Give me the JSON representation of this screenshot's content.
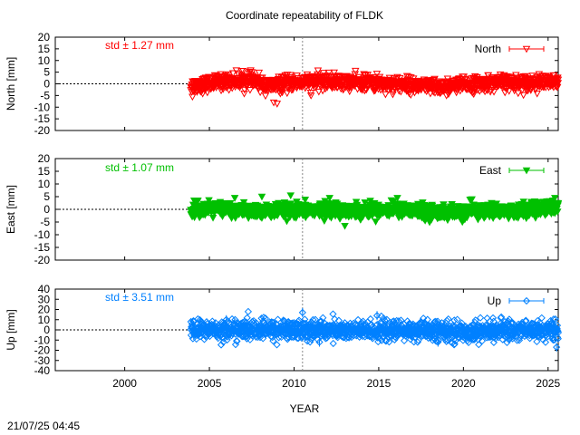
{
  "chart_data": {
    "type": "scatter",
    "title": "Coordinate repeatability of FLDK",
    "xlabel": "YEAR",
    "timestamp": "21/07/25 04:45",
    "xlim": [
      1995.9,
      2025.6
    ],
    "xticks": [
      2000,
      2005,
      2010,
      2015,
      2020,
      2025
    ],
    "reference_year": 2010.5,
    "data_start_year": 2003.9,
    "panels": [
      {
        "name": "North",
        "ylabel": "North [mm]",
        "std_label": "std ± 1.27 mm",
        "color": "#ff0000",
        "marker": "triangle-down",
        "ylim": [
          -20,
          20
        ],
        "yticks": [
          20,
          15,
          10,
          5,
          0,
          -5,
          -10,
          -15,
          -20
        ],
        "std": 1.27,
        "mean_profile": [
          [
            2003.9,
            -1.0
          ],
          [
            2006.0,
            1.0
          ],
          [
            2007.5,
            1.5
          ],
          [
            2008.5,
            -1.0
          ],
          [
            2010.0,
            0.5
          ],
          [
            2012.0,
            1.0
          ],
          [
            2014.0,
            0.5
          ],
          [
            2016.0,
            0.0
          ],
          [
            2018.5,
            -1.5
          ],
          [
            2020.0,
            -0.5
          ],
          [
            2022.0,
            0.5
          ],
          [
            2024.0,
            0.5
          ],
          [
            2025.6,
            0.5
          ]
        ],
        "outliers": [
          [
            2008.8,
            -8.0
          ],
          [
            2009.0,
            -8.5
          ],
          [
            2004.0,
            -5.5
          ],
          [
            2006.9,
            5.5
          ],
          [
            2007.4,
            5.0
          ],
          [
            2011.0,
            -5.0
          ],
          [
            2015.4,
            -4.5
          ],
          [
            2019.0,
            -5.0
          ]
        ]
      },
      {
        "name": "East",
        "ylabel": "East [mm]",
        "std_label": "std ± 1.07 mm",
        "color": "#00c000",
        "marker": "triangle-down-filled",
        "ylim": [
          -20,
          20
        ],
        "yticks": [
          20,
          15,
          10,
          5,
          0,
          -5,
          -10,
          -15,
          -20
        ],
        "std": 1.07,
        "mean_profile": [
          [
            2003.9,
            0.0
          ],
          [
            2006.0,
            0.0
          ],
          [
            2008.0,
            -1.0
          ],
          [
            2010.0,
            -0.5
          ],
          [
            2012.0,
            0.0
          ],
          [
            2014.0,
            -0.5
          ],
          [
            2016.0,
            0.0
          ],
          [
            2018.0,
            -1.0
          ],
          [
            2019.5,
            -1.5
          ],
          [
            2021.0,
            -0.5
          ],
          [
            2023.0,
            -0.5
          ],
          [
            2025.6,
            0.5
          ]
        ],
        "outliers": [
          [
            2006.5,
            4.5
          ],
          [
            2008.1,
            5.0
          ],
          [
            2009.8,
            5.5
          ],
          [
            2004.1,
            3.5
          ],
          [
            2012.1,
            4.5
          ],
          [
            2013.0,
            -6.5
          ],
          [
            2016.1,
            4.5
          ],
          [
            2020.5,
            4.0
          ],
          [
            2025.4,
            4.5
          ]
        ]
      },
      {
        "name": "Up",
        "ylabel": "Up [mm]",
        "std_label": "std ± 3.51 mm",
        "color": "#0080ff",
        "marker": "diamond",
        "ylim": [
          -40,
          40
        ],
        "yticks": [
          40,
          30,
          20,
          10,
          0,
          -10,
          -20,
          -30,
          -40
        ],
        "std": 3.51,
        "mean_profile": [
          [
            2003.9,
            0.0
          ],
          [
            2006.0,
            0.0
          ],
          [
            2008.0,
            0.0
          ],
          [
            2010.0,
            0.5
          ],
          [
            2012.0,
            0.0
          ],
          [
            2014.0,
            -1.0
          ],
          [
            2016.0,
            -0.5
          ],
          [
            2018.0,
            -1.0
          ],
          [
            2020.0,
            -2.0
          ],
          [
            2022.0,
            -0.5
          ],
          [
            2024.0,
            0.0
          ],
          [
            2025.6,
            0.0
          ]
        ],
        "outliers": [
          [
            2010.5,
            17.0
          ],
          [
            2014.9,
            14.0
          ],
          [
            2025.5,
            -17.0
          ],
          [
            2006.0,
            10.0
          ],
          [
            2011.5,
            -12.0
          ],
          [
            2018.5,
            -12.0
          ]
        ]
      }
    ]
  }
}
